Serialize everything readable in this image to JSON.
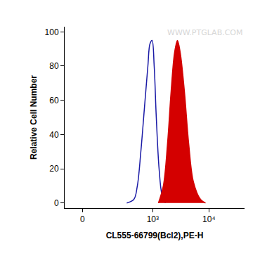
{
  "chart_data": {
    "type": "line",
    "x_label": "CL555-66799(Bcl2),PE-H",
    "y_label": "Relative Cell Number",
    "annotations": [
      "WWW.PTGLAB.COM"
    ],
    "series": [
      {
        "type": "line",
        "color": "#1a1aa6",
        "x": [
          337,
          455,
          528,
          611,
          707,
          818,
          892,
          973,
          1061,
          1157,
          1298,
          1458,
          1684
        ],
        "values": [
          0,
          2,
          10,
          30,
          55,
          80,
          93,
          95,
          80,
          50,
          20,
          5,
          0
        ]
      },
      {
        "type": "area",
        "color": "#d40000",
        "x": [
          1262,
          1545,
          1838,
          2124,
          2452,
          2757,
          3085,
          3672,
          4362,
          5334,
          7108,
          8701
        ],
        "values": [
          0,
          10,
          35,
          65,
          88,
          95,
          88,
          65,
          35,
          12,
          2,
          0
        ]
      }
    ],
    "xlim": [
      -90,
      43000
    ],
    "xticks": [
      0,
      {
        "value": 1000,
        "label": "10³"
      },
      {
        "value": 10000,
        "label": "10⁴"
      }
    ],
    "ylim": [
      -3,
      103
    ],
    "yticks": [
      0,
      20,
      40,
      60,
      80,
      100
    ],
    "grid": false
  }
}
